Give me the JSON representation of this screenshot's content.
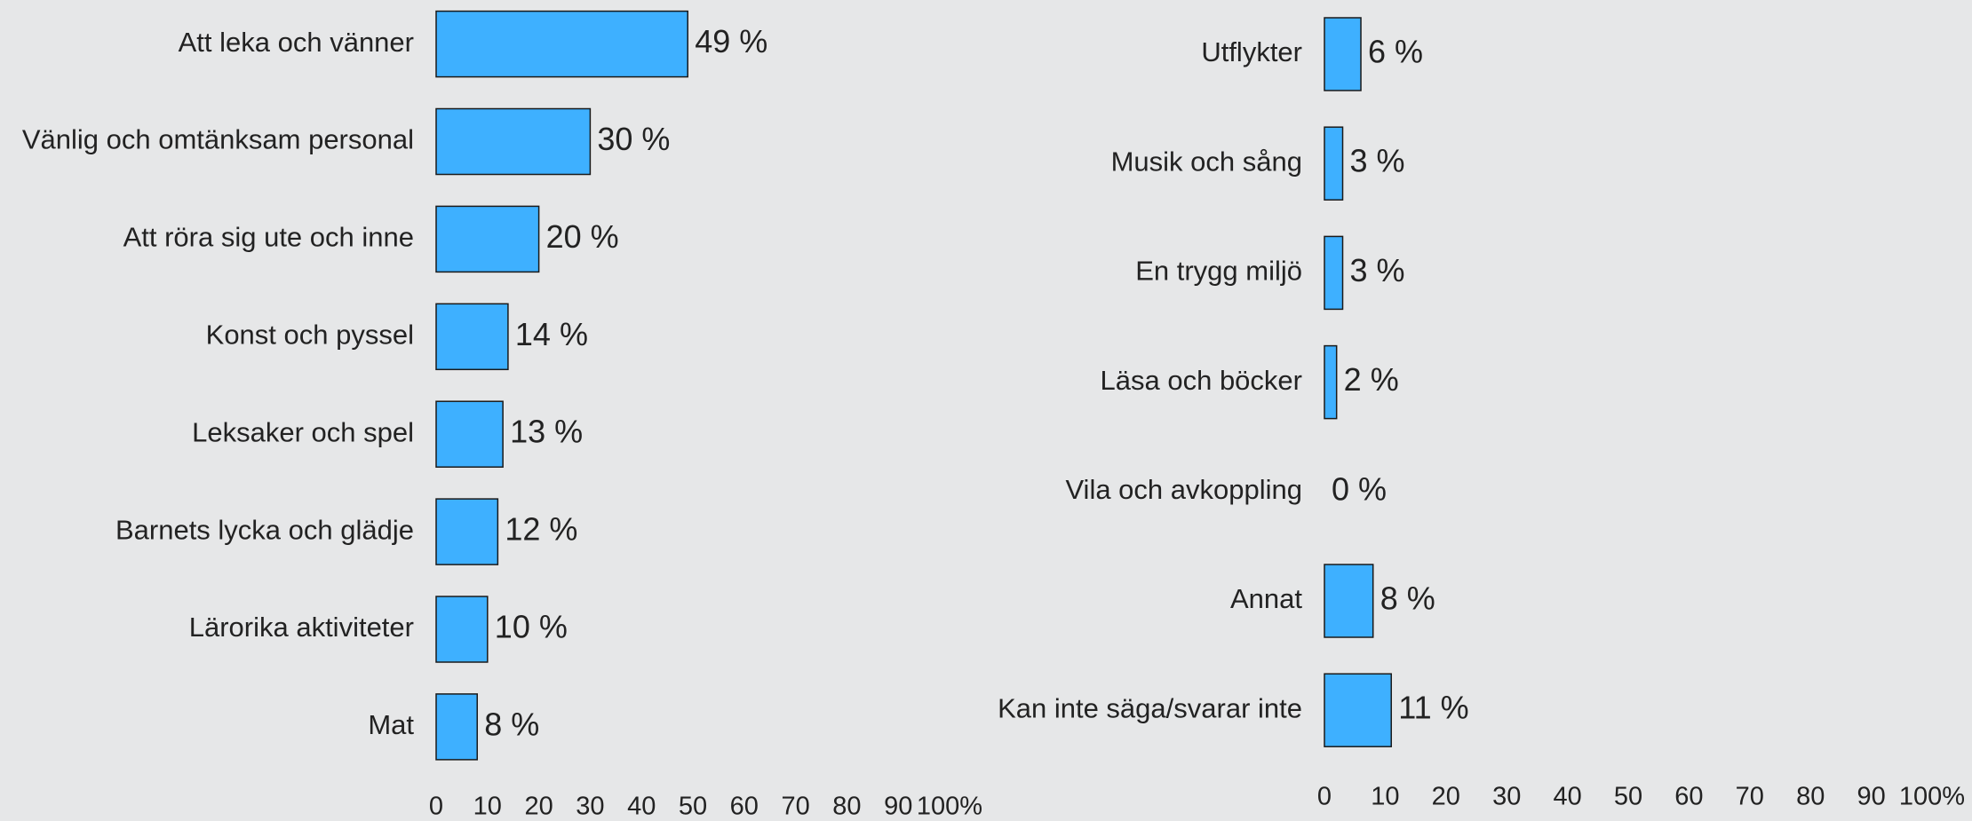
{
  "chart_data": [
    {
      "type": "bar",
      "orientation": "horizontal",
      "color": "#3eb0ff",
      "categories": [
        "Att leka och vänner",
        "Vänlig och omtänksam personal",
        "Att röra sig ute och inne",
        "Konst och pyssel",
        "Leksaker och spel",
        "Barnets lycka och glädje",
        "Lärorika aktiviteter",
        "Mat"
      ],
      "values": [
        49,
        30,
        20,
        14,
        13,
        12,
        10,
        8
      ],
      "value_labels": [
        "49 %",
        "30 %",
        "20 %",
        "14 %",
        "13 %",
        "12 %",
        "10 %",
        "8 %"
      ],
      "xlim": [
        0,
        100
      ],
      "xticks": [
        0,
        10,
        20,
        30,
        40,
        50,
        60,
        70,
        80,
        90,
        {
          "value": 100,
          "label": "100%"
        }
      ]
    },
    {
      "type": "bar",
      "orientation": "horizontal",
      "color": "#3eb0ff",
      "categories": [
        "Utflykter",
        "Musik och sång",
        "En trygg miljö",
        "Läsa och böcker",
        "Vila och avkoppling",
        "Annat",
        "Kan inte säga/svarar inte"
      ],
      "values": [
        6,
        3,
        3,
        2,
        0,
        8,
        11
      ],
      "value_labels": [
        "6 %",
        "3 %",
        "3 %",
        "2 %",
        "0 %",
        "8 %",
        "11 %"
      ],
      "xlim": [
        0,
        100
      ],
      "xticks": [
        0,
        10,
        20,
        30,
        40,
        50,
        60,
        70,
        80,
        90,
        {
          "value": 100,
          "label": "100%"
        }
      ]
    }
  ]
}
